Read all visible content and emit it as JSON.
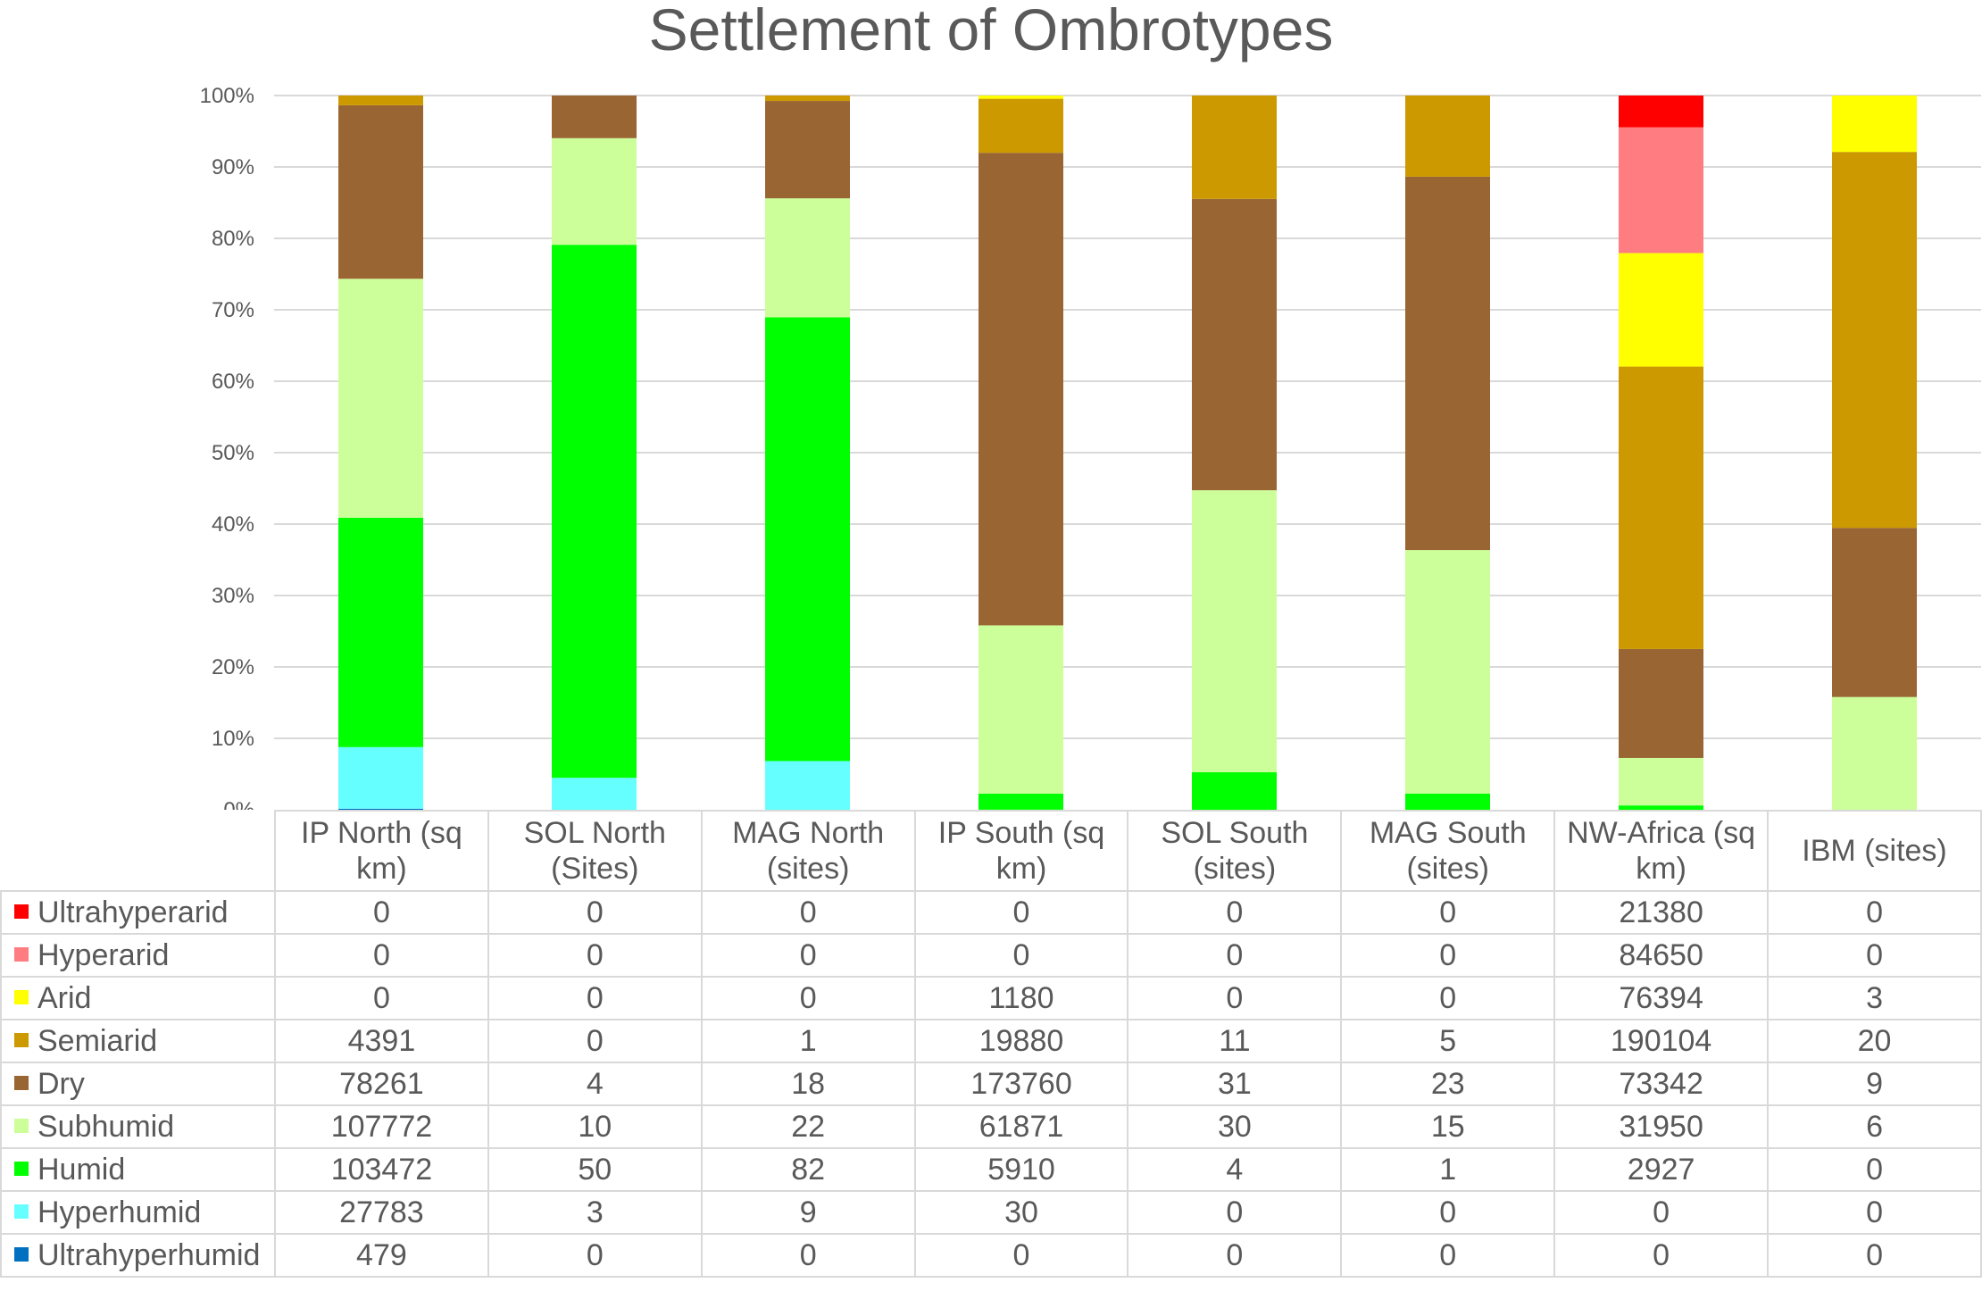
{
  "chart_data": {
    "type": "bar",
    "stacked": "percent",
    "title": "Settlement of Ombrotypes",
    "xlabel": "",
    "ylabel": "",
    "ylim": [
      0,
      100
    ],
    "yticks": [
      "0%",
      "10%",
      "20%",
      "30%",
      "40%",
      "50%",
      "60%",
      "70%",
      "80%",
      "90%",
      "100%"
    ],
    "grid": true,
    "legend": "table-left",
    "categories": [
      "IP North (sq km)",
      "SOL North (Sites)",
      "MAG North (sites)",
      "IP South (sq km)",
      "SOL South (sites)",
      "MAG South (sites)",
      "NW-Africa (sq km)",
      "IBM (sites)"
    ],
    "series": [
      {
        "name": "Ultrahyperarid",
        "color": "#ff0000",
        "values": [
          0,
          0,
          0,
          0,
          0,
          0,
          21380,
          0
        ]
      },
      {
        "name": "Hyperarid",
        "color": "#ff7c80",
        "values": [
          0,
          0,
          0,
          0,
          0,
          0,
          84650,
          0
        ]
      },
      {
        "name": "Arid",
        "color": "#ffff00",
        "values": [
          0,
          0,
          0,
          1180,
          0,
          0,
          76394,
          3
        ]
      },
      {
        "name": "Semiarid",
        "color": "#cc9900",
        "values": [
          4391,
          0,
          1,
          19880,
          11,
          5,
          190104,
          20
        ]
      },
      {
        "name": "Dry",
        "color": "#996633",
        "values": [
          78261,
          4,
          18,
          173760,
          31,
          23,
          73342,
          9
        ]
      },
      {
        "name": "Subhumid",
        "color": "#ccff99",
        "values": [
          107772,
          10,
          22,
          61871,
          30,
          15,
          31950,
          6
        ]
      },
      {
        "name": "Humid",
        "color": "#00ff00",
        "values": [
          103472,
          50,
          82,
          5910,
          4,
          1,
          2927,
          0
        ]
      },
      {
        "name": "Hyperhumid",
        "color": "#66ffff",
        "values": [
          27783,
          3,
          9,
          30,
          0,
          0,
          0,
          0
        ]
      },
      {
        "name": "Ultrahyperhumid",
        "color": "#0070c0",
        "values": [
          479,
          0,
          0,
          0,
          0,
          0,
          0,
          0
        ]
      }
    ]
  },
  "colors": {
    "grid": "#d9d9d9",
    "text": "#595959"
  }
}
